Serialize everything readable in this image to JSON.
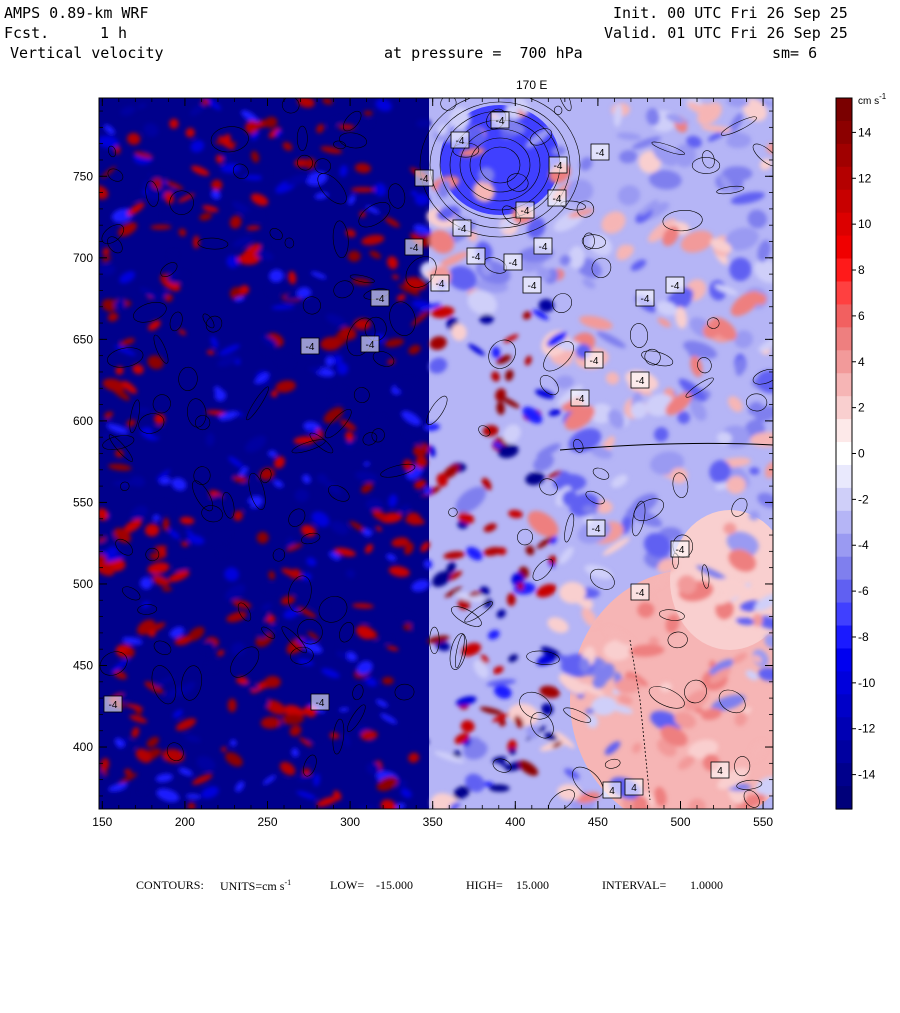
{
  "header": {
    "model": "AMPS 0.89-km WRF",
    "fcst_label": "Fcst.",
    "fcst_value": "1 h",
    "field": "Vertical velocity",
    "init": "Init. 00 UTC Fri 26 Sep 25",
    "valid": "Valid. 01 UTC Fri 26 Sep 25",
    "pressure": "at pressure =  700 hPa",
    "smoothing": "sm= 6",
    "meridian_label": "170 E"
  },
  "colorbar": {
    "units": "cm s",
    "units_exp": "-1",
    "tick_labels": [
      "14",
      "12",
      "10",
      "8",
      "6",
      "4",
      "2",
      "0",
      "-2",
      "-4",
      "-6",
      "-8",
      "-10",
      "-12",
      "-14"
    ],
    "levels": [
      15,
      14,
      13,
      12,
      11,
      10,
      9,
      8,
      7,
      6,
      5,
      4,
      3,
      2,
      1,
      0,
      -1,
      -2,
      -3,
      -4,
      -5,
      -6,
      -7,
      -8,
      -9,
      -10,
      -11,
      -12,
      -13,
      -14,
      -15
    ],
    "colors": [
      "#7a0000",
      "#8c0000",
      "#a00000",
      "#b40000",
      "#c80000",
      "#dc0000",
      "#f00000",
      "#ff1a1a",
      "#ff4040",
      "#f26060",
      "#ee7f7f",
      "#f29a9a",
      "#f6b5b5",
      "#f9cfcf",
      "#fde9e9",
      "#ffffff",
      "#e9e9fd",
      "#cfcff9",
      "#b5b5f6",
      "#9a9af2",
      "#7f7fee",
      "#6060f2",
      "#4040ff",
      "#1a1aff",
      "#0000f0",
      "#0000dc",
      "#0000c8",
      "#0000b4",
      "#0000a0",
      "#00008c",
      "#00007a"
    ]
  },
  "x_axis": {
    "ticks": [
      "150",
      "200",
      "250",
      "300",
      "350",
      "400",
      "450",
      "500",
      "550"
    ],
    "range": [
      148,
      556
    ]
  },
  "y_axis": {
    "ticks": [
      "750",
      "700",
      "650",
      "600",
      "550",
      "500",
      "450",
      "400"
    ],
    "range": [
      362,
      798
    ]
  },
  "footer": {
    "contours_label": "CONTOURS:",
    "units_label": "UNITS=cm s",
    "units_exp": "-1",
    "low_label": "LOW=",
    "low_value": "-15.000",
    "high_label": "HIGH=",
    "high_value": "15.000",
    "interval_label": "INTERVAL=",
    "interval_value": "1.0000"
  },
  "contour_labels": [
    "-4",
    "4"
  ],
  "colors": {
    "frame": "#000000",
    "background": "#ffffff"
  }
}
